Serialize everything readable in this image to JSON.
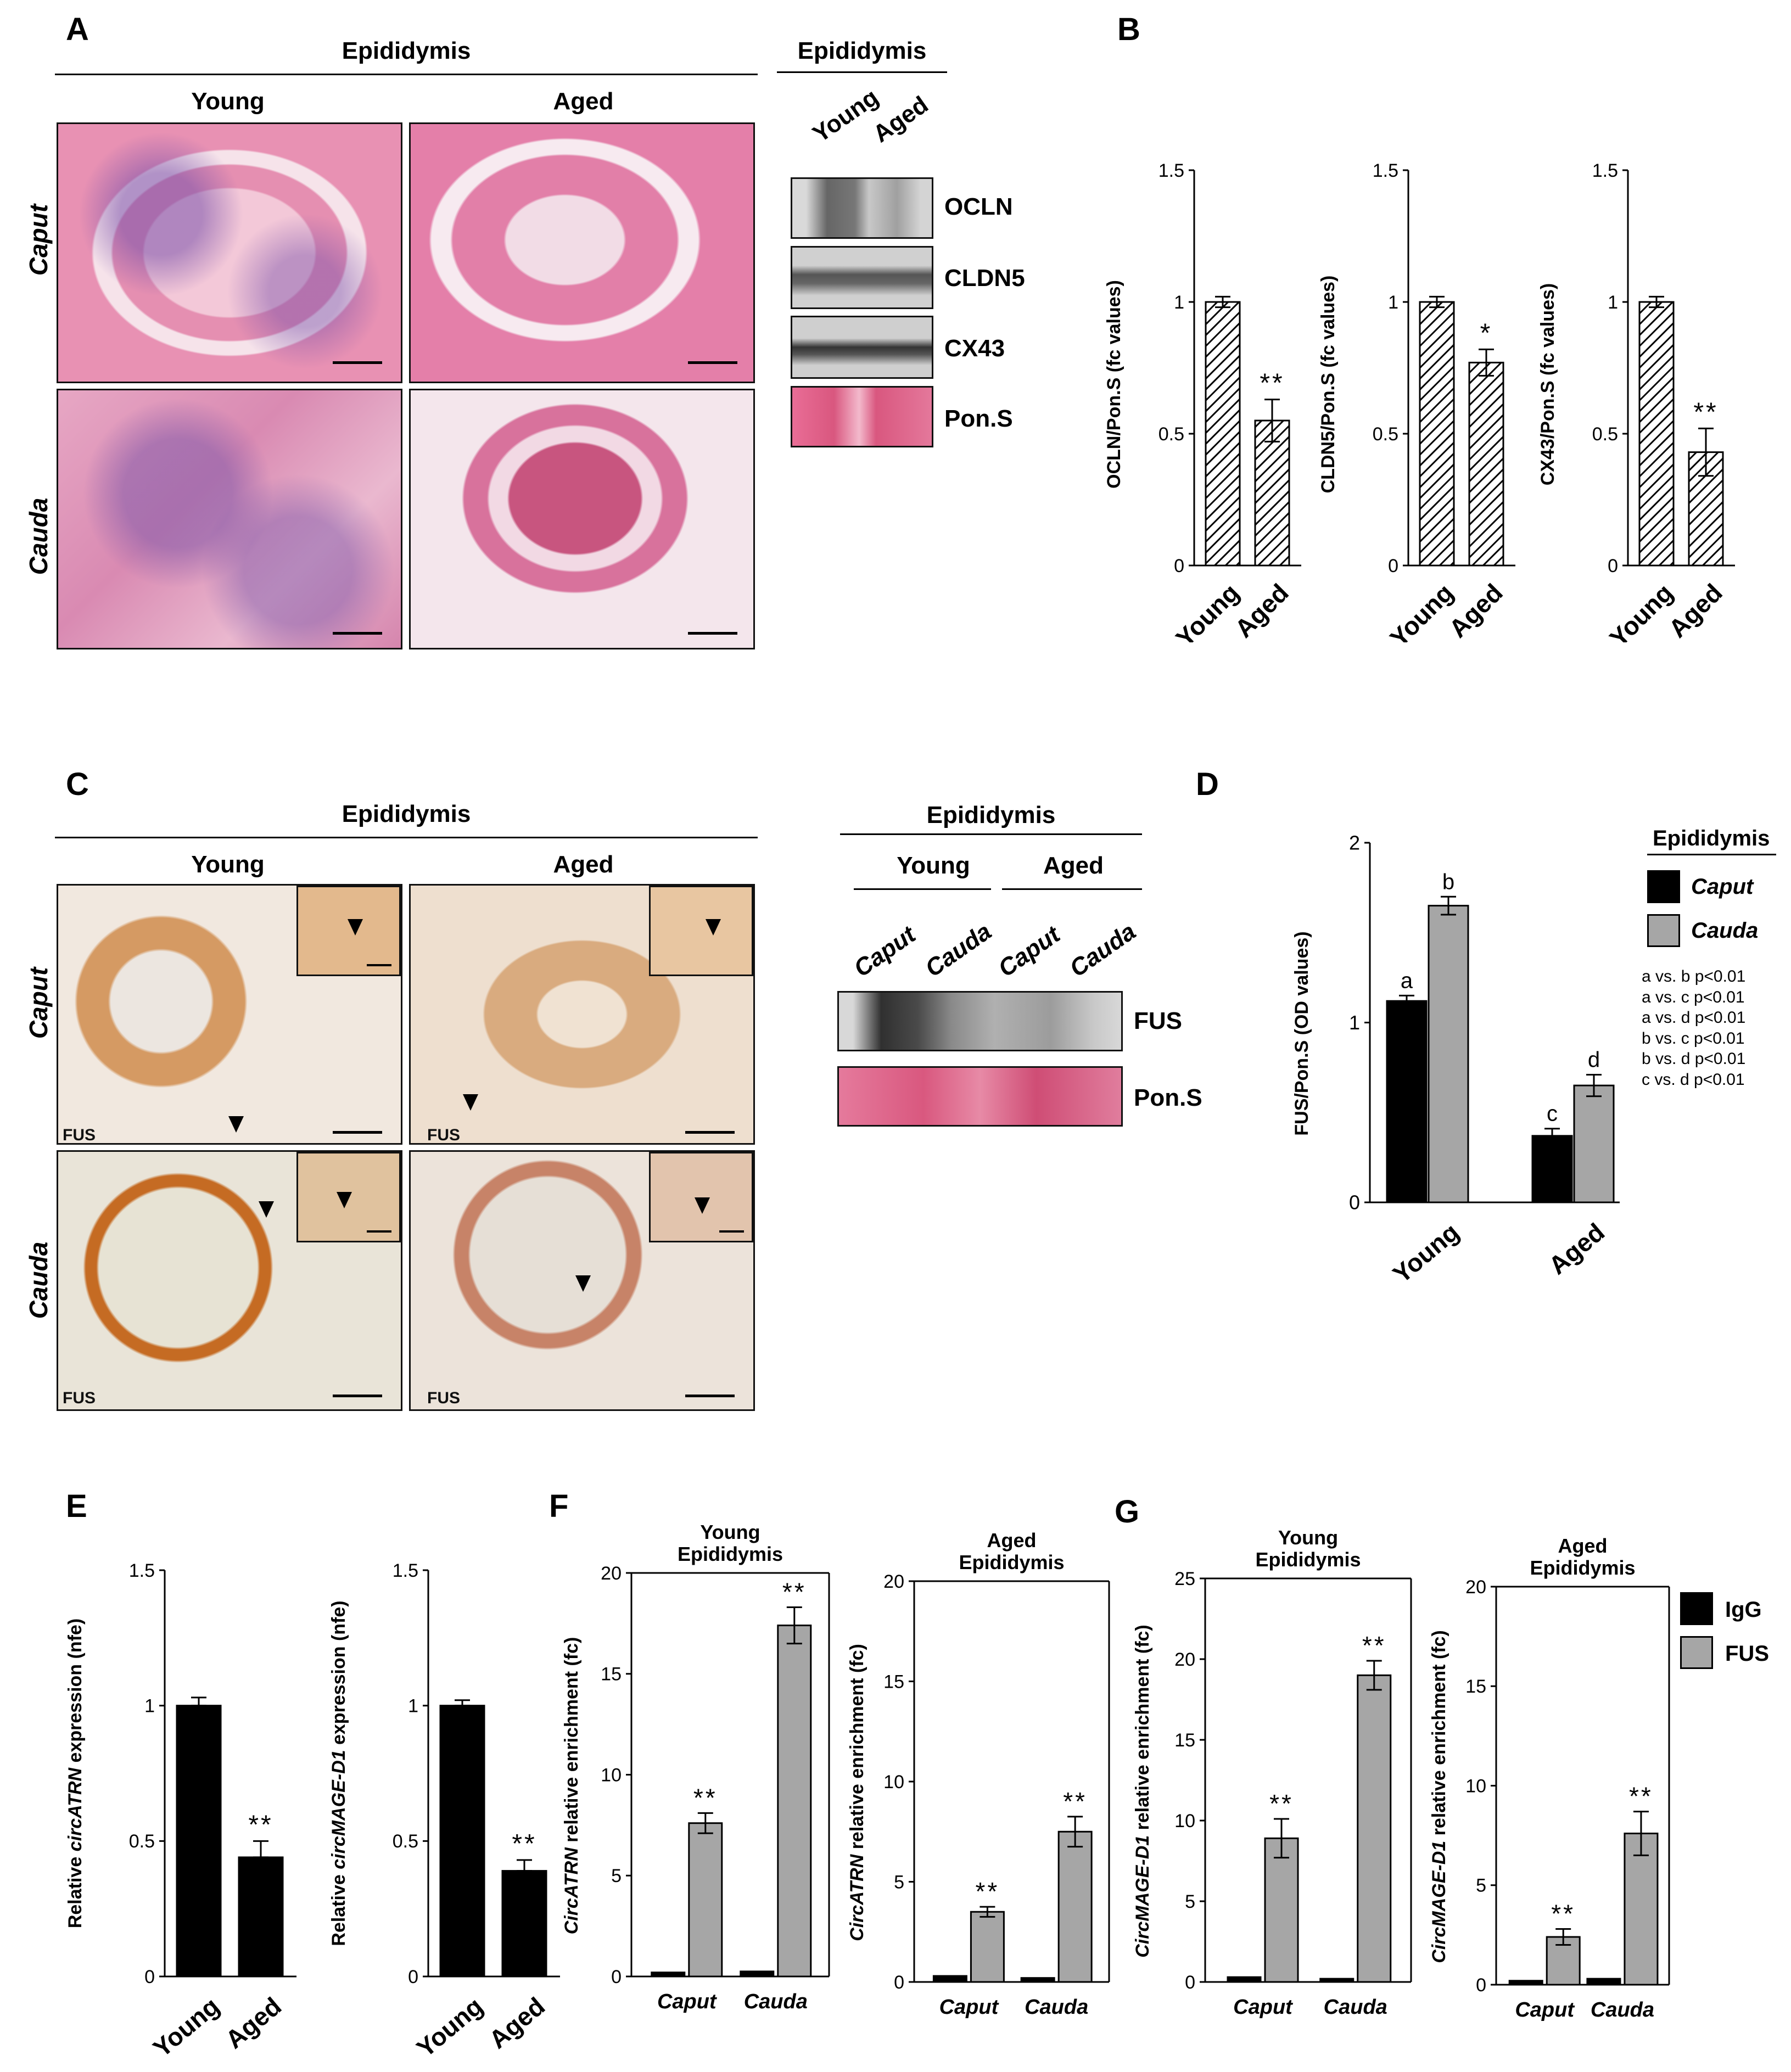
{
  "panel_letters": {
    "a": "A",
    "b": "B",
    "c": "C",
    "d": "D",
    "e": "E",
    "f": "F",
    "g": "G"
  },
  "panelA": {
    "header": "Epididymis",
    "col_young": "Young",
    "col_aged": "Aged",
    "row_caput": "Caput",
    "row_cauda": "Cauda"
  },
  "panelA_blot": {
    "header": "Epididymis",
    "lane_young": "Young",
    "lane_aged": "Aged",
    "bands": [
      "OCLN",
      "CLDN5",
      "CX43",
      "Pon.S"
    ]
  },
  "panelC": {
    "header": "Epididymis",
    "col_young": "Young",
    "col_aged": "Aged",
    "row_caput": "Caput",
    "row_cauda": "Cauda",
    "stain_label": "FUS"
  },
  "panelC_blot": {
    "header": "Epididymis",
    "group_young": "Young",
    "group_aged": "Aged",
    "lanes": [
      "Caput",
      "Cauda",
      "Caput",
      "Cauda"
    ],
    "bands": [
      "FUS",
      "Pon.S"
    ]
  },
  "panelD_legend": {
    "title": "Epididymis",
    "items": [
      "Caput",
      "Cauda"
    ],
    "colors": [
      "#000000",
      "#a6a6a6"
    ],
    "stats": [
      "a vs. b p<0.01",
      "a vs. c p<0.01",
      "a vs. d p<0.01",
      "b vs. c p<0.01",
      "b vs. d p<0.01",
      "c vs. d p<0.01"
    ]
  },
  "panelG_legend": {
    "items": [
      "IgG",
      "FUS"
    ],
    "colors": [
      "#000000",
      "#a6a6a6"
    ]
  },
  "chart_data": [
    {
      "id": "B1",
      "type": "bar",
      "categories": [
        "Young",
        "Aged"
      ],
      "values": [
        1.0,
        0.55
      ],
      "errors": [
        0.02,
        0.08
      ],
      "ylabel": "OCLN/Pon.S (fc values)",
      "ylim": [
        0,
        1.5
      ],
      "yticks": [
        "0",
        "0.5",
        "1",
        "1.5"
      ],
      "annotations": [
        "",
        "**"
      ],
      "fill": "hatch"
    },
    {
      "id": "B2",
      "type": "bar",
      "categories": [
        "Young",
        "Aged"
      ],
      "values": [
        1.0,
        0.77
      ],
      "errors": [
        0.02,
        0.05
      ],
      "ylabel": "CLDN5/Pon.S (fc values)",
      "ylim": [
        0,
        1.5
      ],
      "yticks": [
        "0",
        "0.5",
        "1",
        "1.5"
      ],
      "annotations": [
        "",
        "*"
      ],
      "fill": "hatch"
    },
    {
      "id": "B3",
      "type": "bar",
      "categories": [
        "Young",
        "Aged"
      ],
      "values": [
        1.0,
        0.43
      ],
      "errors": [
        0.02,
        0.09
      ],
      "ylabel": "CX43/Pon.S (fc values)",
      "ylim": [
        0,
        1.5
      ],
      "yticks": [
        "0",
        "0.5",
        "1",
        "1.5"
      ],
      "annotations": [
        "",
        "**"
      ],
      "fill": "hatch"
    },
    {
      "id": "D",
      "type": "bar",
      "categories": [
        "Young",
        "Aged"
      ],
      "series": [
        {
          "name": "Caput",
          "values": [
            1.12,
            0.37
          ],
          "errors": [
            0.03,
            0.04
          ],
          "labels": [
            "a",
            "c"
          ]
        },
        {
          "name": "Cauda",
          "values": [
            1.65,
            0.65
          ],
          "errors": [
            0.05,
            0.06
          ],
          "labels": [
            "b",
            "d"
          ]
        }
      ],
      "ylabel": "FUS/Pon.S (OD values)",
      "ylim": [
        0,
        2
      ],
      "yticks": [
        "0",
        "1",
        "2"
      ]
    },
    {
      "id": "E1",
      "type": "bar",
      "categories": [
        "Young",
        "Aged"
      ],
      "values": [
        1.0,
        0.44
      ],
      "errors": [
        0.03,
        0.06
      ],
      "ylabel_pre": "Relative ",
      "ylabel_it": "circATRN",
      "ylabel_post": " expression (nfe)",
      "ylim": [
        0,
        1.5
      ],
      "yticks": [
        "0",
        "0.5",
        "1",
        "1.5"
      ],
      "annotations": [
        "",
        "**"
      ],
      "fill": "black"
    },
    {
      "id": "E2",
      "type": "bar",
      "categories": [
        "Young",
        "Aged"
      ],
      "values": [
        1.0,
        0.39
      ],
      "errors": [
        0.02,
        0.04
      ],
      "ylabel_pre": "Relative ",
      "ylabel_it": "circMAGE-D1",
      "ylabel_post": " expression (nfe)",
      "ylim": [
        0,
        1.5
      ],
      "yticks": [
        "0",
        "0.5",
        "1",
        "1.5"
      ],
      "annotations": [
        "",
        "**"
      ],
      "fill": "black"
    },
    {
      "id": "F1",
      "type": "bar",
      "title": [
        "Young",
        "Epididymis"
      ],
      "categories": [
        "Caput",
        "Cauda"
      ],
      "series": [
        {
          "name": "IgG",
          "values": [
            0.2,
            0.25
          ],
          "errors": [
            0.05,
            0.05
          ]
        },
        {
          "name": "FUS",
          "values": [
            7.6,
            17.4
          ],
          "errors": [
            0.5,
            0.9
          ],
          "annotations": [
            "**",
            "**"
          ]
        }
      ],
      "ylabel_it": "CircATRN",
      "ylabel_post": " relative enrichment (fc)",
      "ylim": [
        0,
        20
      ],
      "yticks": [
        "0",
        "5",
        "10",
        "15",
        "20"
      ]
    },
    {
      "id": "F2",
      "type": "bar",
      "title": [
        "Aged",
        "Epididymis"
      ],
      "categories": [
        "Caput",
        "Cauda"
      ],
      "series": [
        {
          "name": "IgG",
          "values": [
            0.3,
            0.2
          ],
          "errors": [
            0.05,
            0.05
          ]
        },
        {
          "name": "FUS",
          "values": [
            3.5,
            7.5
          ],
          "errors": [
            0.25,
            0.75
          ],
          "annotations": [
            "**",
            "**"
          ]
        }
      ],
      "ylabel_it": "CircATRN",
      "ylabel_post": " relative enrichment (fc)",
      "ylim": [
        0,
        20
      ],
      "yticks": [
        "0",
        "5",
        "10",
        "15",
        "20"
      ]
    },
    {
      "id": "G1",
      "type": "bar",
      "title": [
        "Young",
        "Epididymis"
      ],
      "categories": [
        "Caput",
        "Cauda"
      ],
      "series": [
        {
          "name": "IgG",
          "values": [
            0.3,
            0.2
          ],
          "errors": [
            0.05,
            0.05
          ]
        },
        {
          "name": "FUS",
          "values": [
            8.9,
            19.0
          ],
          "errors": [
            1.2,
            0.9
          ],
          "annotations": [
            "**",
            "**"
          ]
        }
      ],
      "ylabel_it": "CircMAGE-D1",
      "ylabel_post": " relative enrichment (fc)",
      "ylim": [
        0,
        25
      ],
      "yticks": [
        "0",
        "5",
        "10",
        "15",
        "20",
        "25"
      ]
    },
    {
      "id": "G2",
      "type": "bar",
      "title": [
        "Aged",
        "Epididymis"
      ],
      "categories": [
        "Caput",
        "Cauda"
      ],
      "series": [
        {
          "name": "IgG",
          "values": [
            0.2,
            0.3
          ],
          "errors": [
            0.05,
            0.05
          ]
        },
        {
          "name": "FUS",
          "values": [
            2.4,
            7.6
          ],
          "errors": [
            0.4,
            1.1
          ],
          "annotations": [
            "**",
            "**"
          ]
        }
      ],
      "ylabel_it": "CircMAGE-D1",
      "ylabel_post": " relative enrichment (fc)",
      "ylim": [
        0,
        20
      ],
      "yticks": [
        "0",
        "5",
        "10",
        "15",
        "20"
      ]
    }
  ]
}
